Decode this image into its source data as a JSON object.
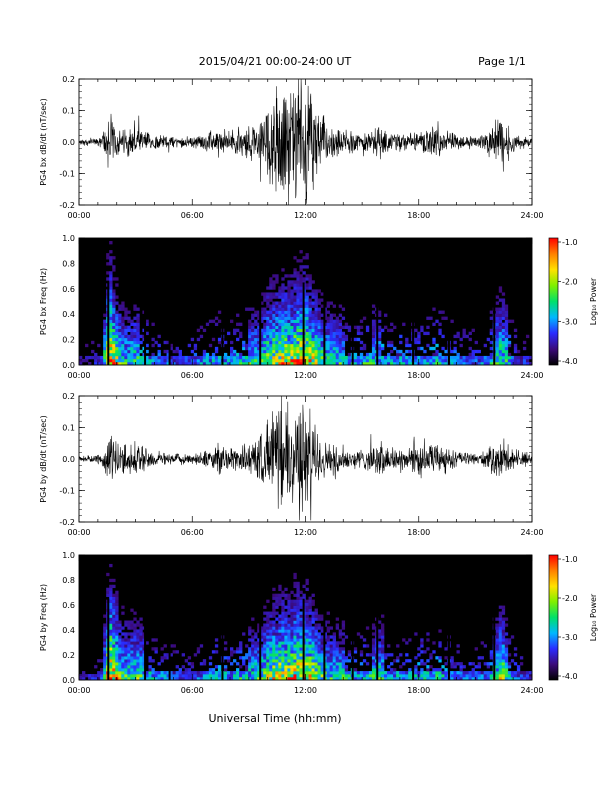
{
  "header": {
    "date_range": "2015/04/21  00:00-24:00 UT",
    "page": "Page 1/1"
  },
  "chart_data": [
    {
      "type": "line",
      "ylabel": "PG4 bx dB/dt (nT/sec)",
      "xlim": [
        0,
        24
      ],
      "ylim": [
        -0.2,
        0.2
      ],
      "x_tick_labels": [
        "00:00",
        "06:00",
        "12:00",
        "18:00",
        "24:00"
      ],
      "y_tick_labels": [
        "-0.2",
        "-0.1",
        "0.0",
        "0.1",
        "0.2"
      ],
      "x_ticks": [
        0,
        6,
        12,
        18,
        24
      ],
      "y_ticks": [
        -0.2,
        -0.1,
        0.0,
        0.1,
        0.2
      ],
      "series": [
        {
          "envelope_hours": [
            0,
            1.2,
            1.6,
            1.9,
            2.2,
            2.6,
            3.0,
            3.5,
            4.0,
            5.0,
            6.0,
            7.0,
            7.6,
            8.0,
            8.5,
            9.0,
            9.6,
            10.0,
            10.4,
            10.8,
            11.2,
            11.6,
            12.0,
            12.4,
            12.8,
            13.2,
            13.6,
            14.0,
            14.4,
            15.0,
            15.6,
            16.0,
            16.5,
            17.0,
            17.5,
            18.0,
            18.5,
            19.0,
            19.5,
            20.0,
            21.0,
            21.6,
            22.0,
            22.4,
            22.8,
            23.2,
            24.0
          ],
          "envelope_amplitude": [
            0.01,
            0.02,
            0.12,
            0.08,
            0.04,
            0.05,
            0.06,
            0.04,
            0.03,
            0.02,
            0.02,
            0.04,
            0.05,
            0.04,
            0.05,
            0.06,
            0.09,
            0.16,
            0.22,
            0.24,
            0.22,
            0.25,
            0.24,
            0.18,
            0.1,
            0.06,
            0.05,
            0.05,
            0.04,
            0.04,
            0.05,
            0.06,
            0.03,
            0.04,
            0.03,
            0.04,
            0.05,
            0.06,
            0.04,
            0.03,
            0.02,
            0.03,
            0.07,
            0.11,
            0.06,
            0.03,
            0.02
          ]
        }
      ]
    },
    {
      "type": "heatmap",
      "ylabel": "PG4 bx Freq (Hz)",
      "xlim": [
        0,
        24
      ],
      "ylim": [
        0,
        1.0
      ],
      "x_tick_labels": [
        "00:00",
        "06:00",
        "12:00",
        "18:00",
        "24:00"
      ],
      "y_tick_labels": [
        "0.0",
        "0.2",
        "0.4",
        "0.6",
        "0.8",
        "1.0"
      ],
      "colorbar": {
        "label": "Log₁₀ Power",
        "range": [
          -4.0,
          -1.0
        ],
        "tick_labels": [
          "-1.0",
          "-2.0",
          "-3.0",
          "-4.0"
        ],
        "colors": [
          "#000000",
          "#3b0a7a",
          "#2a2cff",
          "#00b7ff",
          "#00e06a",
          "#7ff000",
          "#ffe100",
          "#ff8000",
          "#ff0000"
        ]
      },
      "activity_hours": [
        0,
        1.2,
        1.6,
        1.9,
        2.2,
        2.6,
        3.0,
        3.5,
        4.0,
        5.0,
        6.0,
        7.0,
        7.6,
        8.0,
        8.5,
        9.0,
        9.6,
        10.0,
        10.4,
        10.8,
        11.2,
        11.6,
        12.0,
        12.4,
        12.8,
        13.2,
        13.6,
        14.0,
        14.4,
        15.0,
        15.6,
        16.0,
        16.5,
        17.0,
        17.5,
        18.0,
        18.5,
        19.0,
        19.5,
        20.0,
        21.0,
        21.6,
        22.0,
        22.4,
        22.8,
        23.2,
        24.0
      ],
      "activity_level": [
        0.15,
        0.25,
        1.0,
        0.8,
        0.55,
        0.5,
        0.55,
        0.45,
        0.35,
        0.3,
        0.3,
        0.4,
        0.45,
        0.4,
        0.45,
        0.5,
        0.55,
        0.7,
        0.75,
        0.8,
        0.8,
        0.85,
        0.9,
        0.75,
        0.6,
        0.55,
        0.5,
        0.5,
        0.45,
        0.45,
        0.5,
        0.5,
        0.4,
        0.45,
        0.4,
        0.4,
        0.45,
        0.5,
        0.4,
        0.35,
        0.3,
        0.35,
        0.55,
        0.65,
        0.45,
        0.3,
        0.2
      ],
      "gap_hours": [
        1.55,
        3.5,
        4.8,
        7.6,
        9.6,
        11.9,
        13.0,
        14.5,
        15.8,
        17.7,
        19.6,
        22.0
      ]
    },
    {
      "type": "line",
      "ylabel": "PG4 by dB/dt (nT/sec)",
      "xlim": [
        0,
        24
      ],
      "ylim": [
        -0.2,
        0.2
      ],
      "x_tick_labels": [
        "00:00",
        "06:00",
        "12:00",
        "18:00",
        "24:00"
      ],
      "y_tick_labels": [
        "-0.2",
        "-0.1",
        "0.0",
        "0.1",
        "0.2"
      ],
      "x_ticks": [
        0,
        6,
        12,
        18,
        24
      ],
      "y_ticks": [
        -0.2,
        -0.1,
        0.0,
        0.1,
        0.2
      ],
      "series": [
        {
          "envelope_hours": [
            0,
            1.2,
            1.6,
            1.9,
            2.2,
            2.6,
            3.0,
            3.5,
            4.0,
            5.0,
            6.0,
            7.0,
            7.6,
            8.0,
            8.5,
            9.0,
            9.6,
            10.0,
            10.4,
            10.8,
            11.2,
            11.6,
            12.0,
            12.4,
            12.8,
            13.2,
            13.6,
            14.0,
            14.4,
            15.0,
            15.6,
            16.0,
            16.5,
            17.0,
            17.5,
            18.0,
            18.5,
            19.0,
            19.5,
            20.0,
            21.0,
            21.6,
            22.0,
            22.4,
            22.8,
            23.2,
            24.0
          ],
          "envelope_amplitude": [
            0.01,
            0.02,
            0.1,
            0.09,
            0.05,
            0.05,
            0.06,
            0.05,
            0.03,
            0.02,
            0.02,
            0.04,
            0.06,
            0.04,
            0.05,
            0.06,
            0.08,
            0.14,
            0.18,
            0.2,
            0.19,
            0.22,
            0.21,
            0.16,
            0.09,
            0.06,
            0.05,
            0.05,
            0.04,
            0.04,
            0.05,
            0.07,
            0.04,
            0.05,
            0.04,
            0.1,
            0.05,
            0.06,
            0.05,
            0.03,
            0.02,
            0.03,
            0.06,
            0.08,
            0.05,
            0.03,
            0.02
          ]
        }
      ]
    },
    {
      "type": "heatmap",
      "ylabel": "PG4 by Freq (Hz)",
      "xlim": [
        0,
        24
      ],
      "ylim": [
        0,
        1.0
      ],
      "x_tick_labels": [
        "00:00",
        "06:00",
        "12:00",
        "18:00",
        "24:00"
      ],
      "y_tick_labels": [
        "0.0",
        "0.2",
        "0.4",
        "0.6",
        "0.8",
        "1.0"
      ],
      "colorbar": {
        "label": "Log₁₀ Power",
        "range": [
          -4.0,
          -1.0
        ],
        "tick_labels": [
          "-1.0",
          "-2.0",
          "-3.0",
          "-4.0"
        ],
        "colors": [
          "#000000",
          "#3b0a7a",
          "#2a2cff",
          "#00b7ff",
          "#00e06a",
          "#7ff000",
          "#ffe100",
          "#ff8000",
          "#ff0000"
        ]
      },
      "activity_hours": [
        0,
        1.2,
        1.6,
        1.9,
        2.2,
        2.6,
        3.0,
        3.5,
        4.0,
        5.0,
        6.0,
        7.0,
        7.6,
        8.0,
        8.5,
        9.0,
        9.6,
        10.0,
        10.4,
        10.8,
        11.2,
        11.6,
        12.0,
        12.4,
        12.8,
        13.2,
        13.6,
        14.0,
        14.4,
        15.0,
        15.6,
        16.0,
        16.5,
        17.0,
        17.5,
        18.0,
        18.5,
        19.0,
        19.5,
        20.0,
        21.0,
        21.6,
        22.0,
        22.4,
        22.8,
        23.2,
        24.0
      ],
      "activity_level": [
        0.15,
        0.25,
        1.0,
        0.85,
        0.6,
        0.55,
        0.6,
        0.5,
        0.4,
        0.3,
        0.3,
        0.4,
        0.45,
        0.4,
        0.45,
        0.5,
        0.55,
        0.7,
        0.75,
        0.8,
        0.8,
        0.85,
        0.85,
        0.75,
        0.6,
        0.55,
        0.5,
        0.5,
        0.45,
        0.45,
        0.5,
        0.55,
        0.4,
        0.45,
        0.4,
        0.45,
        0.45,
        0.5,
        0.4,
        0.35,
        0.3,
        0.35,
        0.55,
        0.7,
        0.45,
        0.3,
        0.2
      ],
      "gap_hours": [
        1.55,
        3.5,
        4.8,
        7.6,
        9.6,
        11.9,
        13.0,
        14.5,
        15.8,
        17.7,
        19.6,
        22.0
      ]
    }
  ],
  "footer": {
    "xlabel": "Universal Time (hh:mm)"
  }
}
